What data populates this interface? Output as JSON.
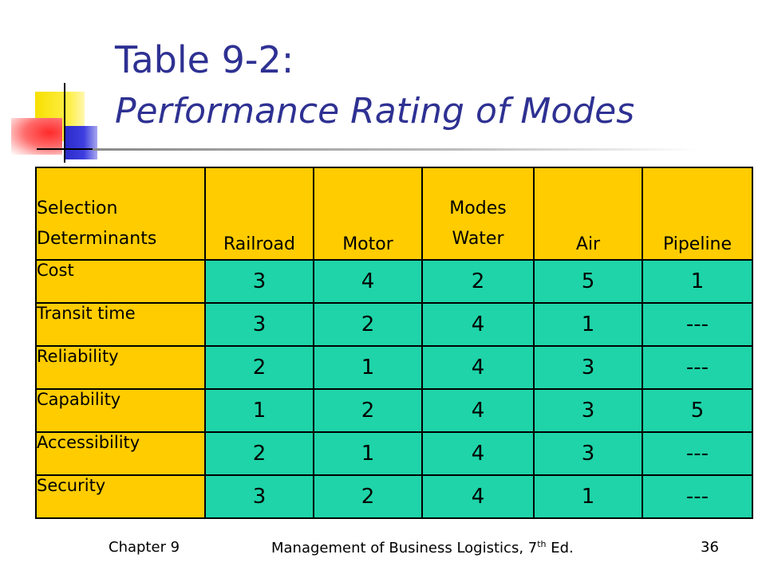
{
  "title": {
    "line1": "Table 9-2:",
    "line2": "Performance Rating of Modes"
  },
  "table": {
    "header": {
      "selection_line1": "Selection",
      "selection_line2": "Determinants",
      "modes_label": "Modes",
      "columns": [
        "Railroad",
        "Motor",
        "Water",
        "Air",
        "Pipeline"
      ]
    },
    "rows": [
      {
        "label": "Cost",
        "values": [
          "3",
          "4",
          "2",
          "5",
          "1"
        ]
      },
      {
        "label": "Transit time",
        "values": [
          "3",
          "2",
          "4",
          "1",
          "---"
        ]
      },
      {
        "label": "Reliability",
        "values": [
          "2",
          "1",
          "4",
          "3",
          "---"
        ]
      },
      {
        "label": "Capability",
        "values": [
          "1",
          "2",
          "4",
          "3",
          "5"
        ]
      },
      {
        "label": "Accessibility",
        "values": [
          "2",
          "1",
          "4",
          "3",
          "---"
        ]
      },
      {
        "label": "Security",
        "values": [
          "3",
          "2",
          "4",
          "1",
          "---"
        ]
      }
    ]
  },
  "footer": {
    "left": "Chapter 9",
    "center_main": "Management of Business Logistics, 7",
    "center_sup": "th",
    "center_tail": " Ed.",
    "right": "36"
  },
  "colors": {
    "title": "#2e3192",
    "header_fill": "#ffcc00",
    "value_fill": "#1ed4a8"
  }
}
